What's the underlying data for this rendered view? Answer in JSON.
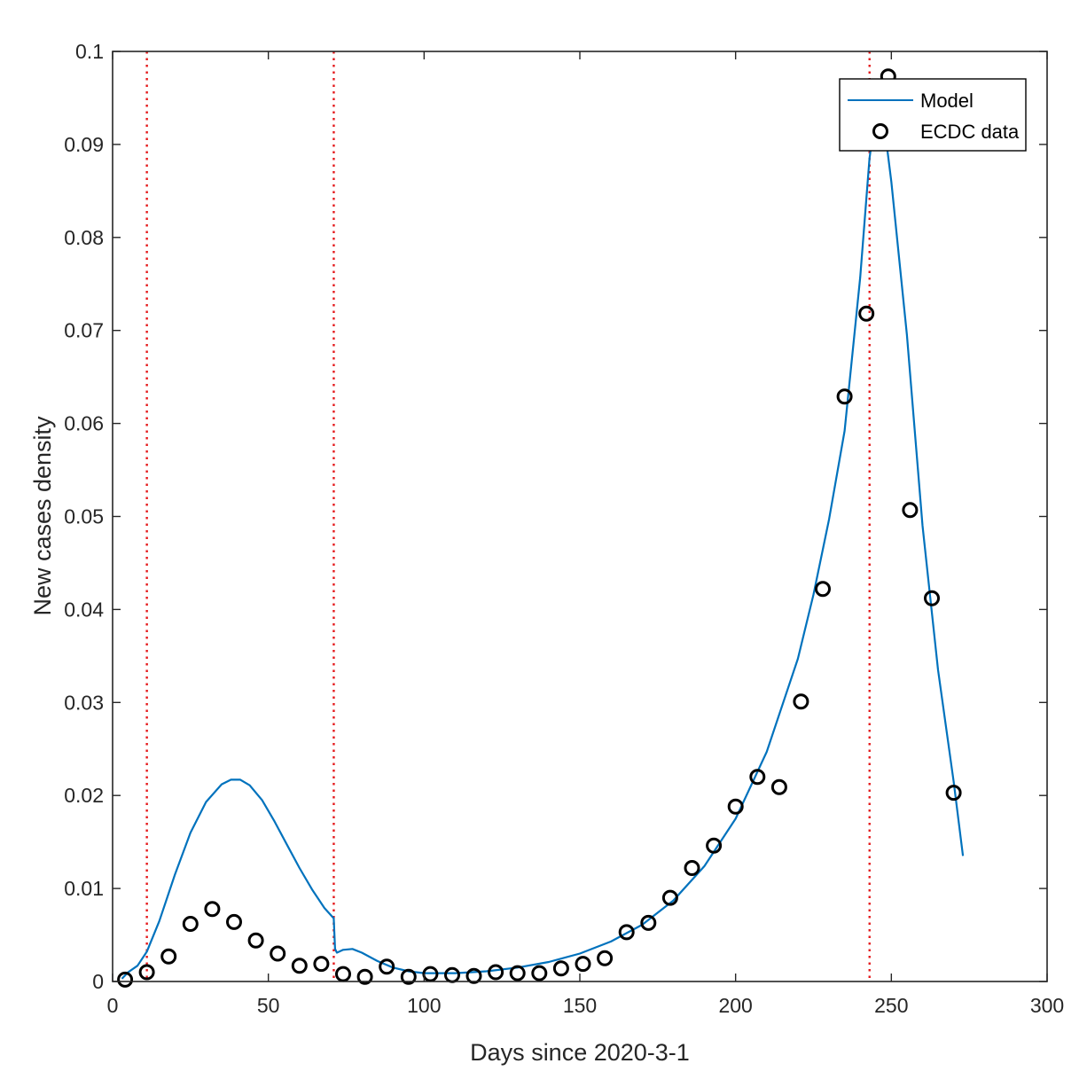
{
  "chart_data": {
    "type": "line",
    "xlabel": "Days since 2020-3-1",
    "ylabel": "New cases density",
    "xlim": [
      0,
      300
    ],
    "ylim": [
      0,
      0.1
    ],
    "xticks": [
      0,
      50,
      100,
      150,
      200,
      250,
      300
    ],
    "yticks": [
      0,
      0.01,
      0.02,
      0.03,
      0.04,
      0.05,
      0.06,
      0.07,
      0.08,
      0.09,
      0.1
    ],
    "xtick_labels": [
      "0",
      "50",
      "100",
      "150",
      "200",
      "250",
      "300"
    ],
    "ytick_labels": [
      "0",
      "0.01",
      "0.02",
      "0.03",
      "0.04",
      "0.05",
      "0.06",
      "0.07",
      "0.08",
      "0.09",
      "0.1"
    ],
    "grid": false,
    "legend_position": "top-right",
    "vertical_lines": {
      "x": [
        11,
        71,
        243
      ],
      "color": "#e41a1c",
      "style": "dotted"
    },
    "series": [
      {
        "name": "Model",
        "kind": "line",
        "color": "#0072bd",
        "x": [
          3,
          5,
          8,
          11,
          15,
          20,
          25,
          30,
          35,
          38,
          41,
          44,
          48,
          52,
          56,
          60,
          64,
          68,
          71,
          71.4,
          72,
          74,
          77,
          80,
          85,
          90,
          95,
          100,
          110,
          120,
          130,
          140,
          150,
          160,
          170,
          180,
          190,
          200,
          210,
          220,
          225,
          230,
          235,
          240,
          243,
          245,
          247,
          250,
          255,
          260,
          265,
          270,
          273
        ],
        "y": [
          0.0003,
          0.001,
          0.0017,
          0.0032,
          0.0065,
          0.0115,
          0.016,
          0.0193,
          0.0212,
          0.0217,
          0.0217,
          0.0211,
          0.0195,
          0.0172,
          0.0147,
          0.0122,
          0.0099,
          0.0079,
          0.0068,
          0.0035,
          0.0031,
          0.0034,
          0.0035,
          0.0031,
          0.0022,
          0.0015,
          0.0011,
          0.0009,
          0.0009,
          0.0011,
          0.0015,
          0.0021,
          0.003,
          0.0043,
          0.0061,
          0.0087,
          0.0124,
          0.0175,
          0.0247,
          0.0347,
          0.0416,
          0.0497,
          0.0592,
          0.0757,
          0.0885,
          0.0935,
          0.094,
          0.086,
          0.0695,
          0.049,
          0.0335,
          0.0215,
          0.0135
        ]
      },
      {
        "name": "ECDC data",
        "kind": "scatter",
        "marker": "circle",
        "color": "#000000",
        "x": [
          4,
          11,
          18,
          25,
          32,
          39,
          46,
          53,
          60,
          67,
          74,
          81,
          88,
          95,
          102,
          109,
          116,
          123,
          130,
          137,
          144,
          151,
          158,
          165,
          172,
          179,
          186,
          193,
          200,
          207,
          214,
          221,
          228,
          235,
          242,
          249,
          256,
          263,
          270
        ],
        "y": [
          0.0002,
          0.001,
          0.0027,
          0.0062,
          0.0078,
          0.0064,
          0.0044,
          0.003,
          0.0017,
          0.0019,
          0.0008,
          0.0005,
          0.0016,
          0.0005,
          0.0008,
          0.0007,
          0.0006,
          0.001,
          0.0009,
          0.0009,
          0.0014,
          0.0019,
          0.0025,
          0.0053,
          0.0063,
          0.009,
          0.0122,
          0.0146,
          0.0188,
          0.022,
          0.0209,
          0.0301,
          0.0422,
          0.0629,
          0.0718,
          0.0973,
          0.0507,
          0.0412,
          0.0203
        ]
      }
    ]
  }
}
